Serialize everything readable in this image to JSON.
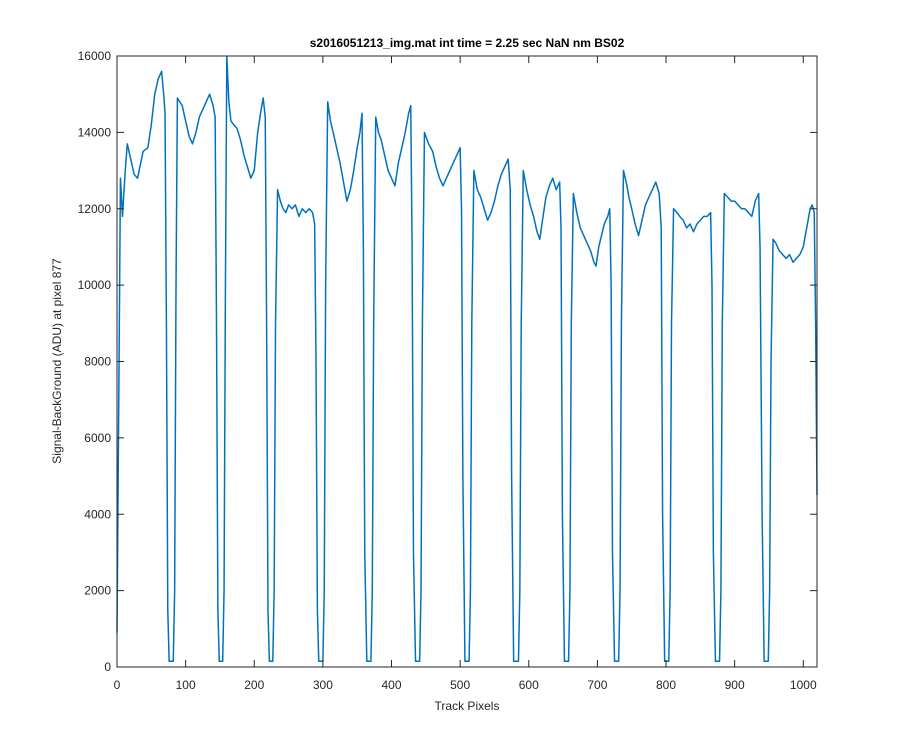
{
  "chart_data": {
    "type": "line",
    "title": "s2016051213_img.mat int time = 2.25 sec  NaN nm BS02",
    "xlabel": "Track Pixels",
    "ylabel": "Signal-BackGround (ADU) at pixel 877",
    "color": "#0072bd",
    "xlim": [
      0,
      1020
    ],
    "xticks": [
      0,
      100,
      200,
      300,
      400,
      500,
      600,
      700,
      800,
      900,
      1000
    ],
    "ylim": [
      0,
      16000
    ],
    "yticks": [
      0,
      2000,
      4000,
      6000,
      8000,
      10000,
      12000,
      14000,
      16000
    ],
    "x": [
      0,
      3,
      5,
      8,
      12,
      15,
      20,
      25,
      30,
      38,
      45,
      50,
      55,
      60,
      65,
      68,
      70,
      72,
      74,
      76,
      82,
      84,
      86,
      88,
      95,
      100,
      105,
      110,
      115,
      120,
      125,
      130,
      135,
      140,
      143,
      145,
      147,
      149,
      154,
      156,
      158,
      160,
      163,
      166,
      170,
      175,
      180,
      185,
      190,
      195,
      200,
      205,
      210,
      213,
      216,
      218,
      220,
      222,
      227,
      229,
      231,
      234,
      238,
      242,
      246,
      250,
      255,
      260,
      265,
      270,
      275,
      280,
      285,
      288,
      290,
      292,
      294,
      300,
      302,
      304,
      307,
      311,
      315,
      320,
      325,
      330,
      335,
      340,
      345,
      350,
      354,
      357,
      359,
      361,
      364,
      370,
      372,
      374,
      377,
      381,
      385,
      390,
      395,
      400,
      405,
      410,
      415,
      420,
      425,
      428,
      430,
      432,
      435,
      441,
      443,
      445,
      448,
      454,
      460,
      465,
      470,
      475,
      480,
      485,
      490,
      495,
      500,
      502,
      504,
      507,
      513,
      515,
      517,
      520,
      525,
      530,
      535,
      540,
      545,
      550,
      555,
      560,
      565,
      570,
      573,
      575,
      578,
      585,
      587,
      589,
      592,
      597,
      602,
      607,
      612,
      616,
      620,
      625,
      630,
      635,
      640,
      645,
      647,
      649,
      652,
      658,
      660,
      662,
      665,
      670,
      675,
      680,
      685,
      690,
      695,
      698,
      702,
      706,
      710,
      715,
      718,
      720,
      722,
      725,
      731,
      733,
      735,
      738,
      742,
      746,
      750,
      755,
      760,
      765,
      770,
      775,
      780,
      785,
      790,
      793,
      795,
      798,
      804,
      806,
      808,
      811,
      816,
      820,
      825,
      830,
      835,
      840,
      845,
      850,
      855,
      860,
      865,
      867,
      869,
      872,
      878,
      880,
      882,
      885,
      890,
      895,
      900,
      905,
      910,
      915,
      920,
      925,
      930,
      935,
      937,
      940,
      943,
      949,
      951,
      953,
      956,
      960,
      965,
      970,
      975,
      980,
      985,
      990,
      995,
      1000,
      1005,
      1010,
      1013,
      1016,
      1018,
      1020
    ],
    "values": [
      900,
      8000,
      12800,
      11800,
      13000,
      13700,
      13300,
      12900,
      12800,
      13500,
      13600,
      14200,
      15000,
      15400,
      15600,
      15000,
      14500,
      9000,
      1500,
      150,
      150,
      2000,
      10000,
      14900,
      14700,
      14300,
      13900,
      13700,
      14000,
      14400,
      14600,
      14800,
      15000,
      14700,
      14400,
      9000,
      1500,
      150,
      150,
      2000,
      10000,
      16000,
      14800,
      14300,
      14200,
      14100,
      13800,
      13400,
      13100,
      12800,
      13000,
      14000,
      14600,
      14900,
      14400,
      9000,
      1500,
      150,
      150,
      2000,
      9000,
      12500,
      12200,
      12000,
      11900,
      12100,
      12000,
      12100,
      11800,
      12000,
      11900,
      12000,
      11900,
      11600,
      8000,
      1500,
      150,
      150,
      2000,
      10000,
      14800,
      14300,
      14000,
      13600,
      13200,
      12700,
      12200,
      12500,
      13000,
      13600,
      14000,
      14500,
      11000,
      3000,
      150,
      150,
      2000,
      9000,
      14400,
      14000,
      13800,
      13400,
      13000,
      12800,
      12600,
      13200,
      13600,
      14000,
      14500,
      14700,
      11000,
      3000,
      150,
      150,
      2000,
      9000,
      14000,
      13700,
      13500,
      13100,
      12800,
      12600,
      12800,
      13000,
      13200,
      13400,
      13600,
      12000,
      5000,
      150,
      150,
      2000,
      9000,
      13000,
      12500,
      12300,
      12000,
      11700,
      11900,
      12200,
      12600,
      12900,
      13100,
      13300,
      12500,
      5000,
      150,
      150,
      2000,
      9000,
      13000,
      12500,
      12100,
      11800,
      11400,
      11200,
      11700,
      12300,
      12600,
      12800,
      12500,
      12700,
      11500,
      4000,
      150,
      150,
      2000,
      9000,
      12400,
      11900,
      11500,
      11300,
      11100,
      10900,
      10600,
      10500,
      11000,
      11300,
      11600,
      11800,
      12000,
      10000,
      3000,
      150,
      150,
      2000,
      9000,
      13000,
      12700,
      12300,
      12000,
      11600,
      11300,
      11700,
      12100,
      12300,
      12500,
      12700,
      12400,
      11500,
      4000,
      150,
      150,
      2000,
      9000,
      12000,
      11900,
      11800,
      11700,
      11500,
      11600,
      11400,
      11600,
      11700,
      11800,
      11800,
      11900,
      10000,
      3000,
      150,
      150,
      2000,
      9000,
      12400,
      12300,
      12200,
      12200,
      12100,
      12000,
      12000,
      11900,
      11800,
      12200,
      12400,
      11000,
      4000,
      150,
      150,
      2000,
      8000,
      11200,
      11100,
      10900,
      10800,
      10700,
      10800,
      10600,
      10700,
      10800,
      11000,
      11500,
      12000,
      12100,
      11900,
      9000,
      4500
    ]
  }
}
